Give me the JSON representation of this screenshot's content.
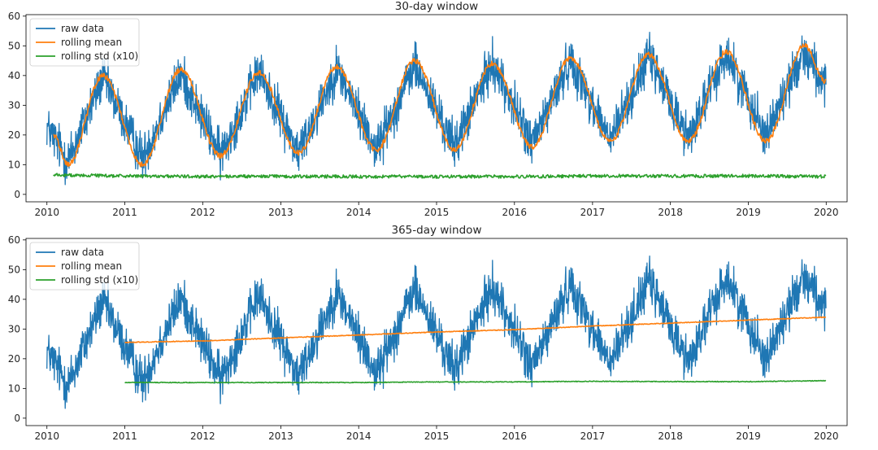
{
  "chart_data": [
    {
      "type": "line",
      "title": "30-day window",
      "xlabel": "",
      "ylabel": "",
      "x_ticks": [
        "2010",
        "2011",
        "2012",
        "2013",
        "2014",
        "2015",
        "2016",
        "2017",
        "2018",
        "2019",
        "2020"
      ],
      "y_ticks": [
        "0",
        "10",
        "20",
        "30",
        "40",
        "50",
        "60"
      ],
      "xlim": [
        "2009-09-25",
        "2020-04-08"
      ],
      "ylim": [
        -2.5,
        60.5
      ],
      "legend": {
        "placement": "upper left",
        "entries": [
          "raw data",
          "rolling mean",
          "rolling std (x10)"
        ]
      },
      "grid": false,
      "window_days": 30,
      "series": [
        {
          "name": "raw data",
          "color": "#1f77b4",
          "x_range": [
            "2010-01-01",
            "2019-12-31"
          ],
          "peaks": [
            {
              "x": "2010-01-01",
              "y": 32
            },
            {
              "x": "2010-04-10",
              "y": 22
            },
            {
              "x": "2010-09-20",
              "y": 49
            },
            {
              "x": "2011-03-25",
              "y": 22
            },
            {
              "x": "2011-09-20",
              "y": 50
            },
            {
              "x": "2012-03-25",
              "y": 23
            },
            {
              "x": "2012-09-20",
              "y": 51
            },
            {
              "x": "2013-03-25",
              "y": 24
            },
            {
              "x": "2013-09-20",
              "y": 52
            },
            {
              "x": "2014-03-25",
              "y": 25
            },
            {
              "x": "2014-09-20",
              "y": 53
            },
            {
              "x": "2015-03-25",
              "y": 26
            },
            {
              "x": "2015-09-20",
              "y": 54
            },
            {
              "x": "2016-03-25",
              "y": 27
            },
            {
              "x": "2016-09-20",
              "y": 55
            },
            {
              "x": "2017-03-25",
              "y": 28
            },
            {
              "x": "2017-09-20",
              "y": 56
            },
            {
              "x": "2018-03-25",
              "y": 29
            },
            {
              "x": "2018-09-20",
              "y": 57
            },
            {
              "x": "2019-03-25",
              "y": 30
            },
            {
              "x": "2019-09-20",
              "y": 58
            },
            {
              "x": "2019-12-31",
              "y": 46
            }
          ],
          "troughs": [
            {
              "x": "2010-01-01",
              "y": 14
            },
            {
              "x": "2010-04-10",
              "y": 0
            },
            {
              "x": "2010-09-20",
              "y": 30
            },
            {
              "x": "2011-03-25",
              "y": 2
            },
            {
              "x": "2011-09-20",
              "y": 31
            },
            {
              "x": "2012-03-25",
              "y": 3
            },
            {
              "x": "2012-09-20",
              "y": 32
            },
            {
              "x": "2013-03-25",
              "y": 4
            },
            {
              "x": "2013-09-20",
              "y": 33
            },
            {
              "x": "2014-03-25",
              "y": 5
            },
            {
              "x": "2014-09-20",
              "y": 34
            },
            {
              "x": "2015-03-25",
              "y": 6
            },
            {
              "x": "2015-09-20",
              "y": 35
            },
            {
              "x": "2016-03-25",
              "y": 7
            },
            {
              "x": "2016-09-20",
              "y": 36
            },
            {
              "x": "2017-03-25",
              "y": 8
            },
            {
              "x": "2017-09-20",
              "y": 37
            },
            {
              "x": "2018-03-25",
              "y": 9
            },
            {
              "x": "2018-09-20",
              "y": 38
            },
            {
              "x": "2019-03-25",
              "y": 10
            },
            {
              "x": "2019-09-20",
              "y": 39
            },
            {
              "x": "2019-12-31",
              "y": 26
            }
          ]
        },
        {
          "name": "rolling mean",
          "color": "#ff7f0e",
          "points": [
            {
              "x": "2010-01-31",
              "y": 20
            },
            {
              "x": "2010-04-10",
              "y": 10
            },
            {
              "x": "2010-09-20",
              "y": 40
            },
            {
              "x": "2011-03-25",
              "y": 10
            },
            {
              "x": "2011-09-20",
              "y": 42
            },
            {
              "x": "2012-03-25",
              "y": 13
            },
            {
              "x": "2012-09-20",
              "y": 41
            },
            {
              "x": "2013-03-25",
              "y": 14
            },
            {
              "x": "2013-09-20",
              "y": 43
            },
            {
              "x": "2014-03-25",
              "y": 15
            },
            {
              "x": "2014-09-20",
              "y": 45
            },
            {
              "x": "2015-03-25",
              "y": 15
            },
            {
              "x": "2015-09-20",
              "y": 44
            },
            {
              "x": "2016-03-25",
              "y": 16
            },
            {
              "x": "2016-09-20",
              "y": 46
            },
            {
              "x": "2017-03-25",
              "y": 18
            },
            {
              "x": "2017-09-20",
              "y": 47
            },
            {
              "x": "2018-03-25",
              "y": 18
            },
            {
              "x": "2018-09-20",
              "y": 48
            },
            {
              "x": "2019-03-25",
              "y": 18
            },
            {
              "x": "2019-09-20",
              "y": 50
            },
            {
              "x": "2019-12-31",
              "y": 38
            }
          ]
        },
        {
          "name": "rolling std (x10)",
          "color": "#2ca02c",
          "points": [
            {
              "x": "2010-01-31",
              "y": 6.5
            },
            {
              "x": "2011-01-01",
              "y": 6.2
            },
            {
              "x": "2012-01-01",
              "y": 6.0
            },
            {
              "x": "2013-01-01",
              "y": 6.1
            },
            {
              "x": "2014-01-01",
              "y": 6.0
            },
            {
              "x": "2015-01-01",
              "y": 6.0
            },
            {
              "x": "2016-01-01",
              "y": 6.0
            },
            {
              "x": "2017-01-01",
              "y": 6.2
            },
            {
              "x": "2018-01-01",
              "y": 6.2
            },
            {
              "x": "2019-01-01",
              "y": 6.2
            },
            {
              "x": "2019-12-31",
              "y": 6.0
            }
          ]
        }
      ]
    },
    {
      "type": "line",
      "title": "365-day window",
      "xlabel": "",
      "ylabel": "",
      "x_ticks": [
        "2010",
        "2011",
        "2012",
        "2013",
        "2014",
        "2015",
        "2016",
        "2017",
        "2018",
        "2019",
        "2020"
      ],
      "y_ticks": [
        "0",
        "10",
        "20",
        "30",
        "40",
        "50",
        "60"
      ],
      "xlim": [
        "2009-09-25",
        "2020-04-08"
      ],
      "ylim": [
        -2.5,
        60.5
      ],
      "legend": {
        "placement": "upper left",
        "entries": [
          "raw data",
          "rolling mean",
          "rolling std (x10)"
        ]
      },
      "grid": false,
      "window_days": 365,
      "series": [
        {
          "name": "raw data",
          "color": "#1f77b4",
          "same_as": "30-day window raw data"
        },
        {
          "name": "rolling mean",
          "color": "#ff7f0e",
          "points": [
            {
              "x": "2011-01-01",
              "y": 25.5
            },
            {
              "x": "2012-01-01",
              "y": 26.0
            },
            {
              "x": "2013-01-01",
              "y": 27.0
            },
            {
              "x": "2014-01-01",
              "y": 28.0
            },
            {
              "x": "2015-01-01",
              "y": 29.0
            },
            {
              "x": "2016-01-01",
              "y": 29.8
            },
            {
              "x": "2017-01-01",
              "y": 31.0
            },
            {
              "x": "2018-01-01",
              "y": 32.0
            },
            {
              "x": "2019-01-01",
              "y": 33.0
            },
            {
              "x": "2019-12-31",
              "y": 34.0
            }
          ]
        },
        {
          "name": "rolling std (x10)",
          "color": "#2ca02c",
          "points": [
            {
              "x": "2011-01-01",
              "y": 12.0
            },
            {
              "x": "2012-01-01",
              "y": 12.0
            },
            {
              "x": "2013-01-01",
              "y": 12.0
            },
            {
              "x": "2014-01-01",
              "y": 12.0
            },
            {
              "x": "2015-01-01",
              "y": 12.2
            },
            {
              "x": "2016-01-01",
              "y": 12.2
            },
            {
              "x": "2017-01-01",
              "y": 12.4
            },
            {
              "x": "2018-01-01",
              "y": 12.3
            },
            {
              "x": "2019-01-01",
              "y": 12.3
            },
            {
              "x": "2019-12-31",
              "y": 12.6
            }
          ]
        }
      ]
    }
  ]
}
